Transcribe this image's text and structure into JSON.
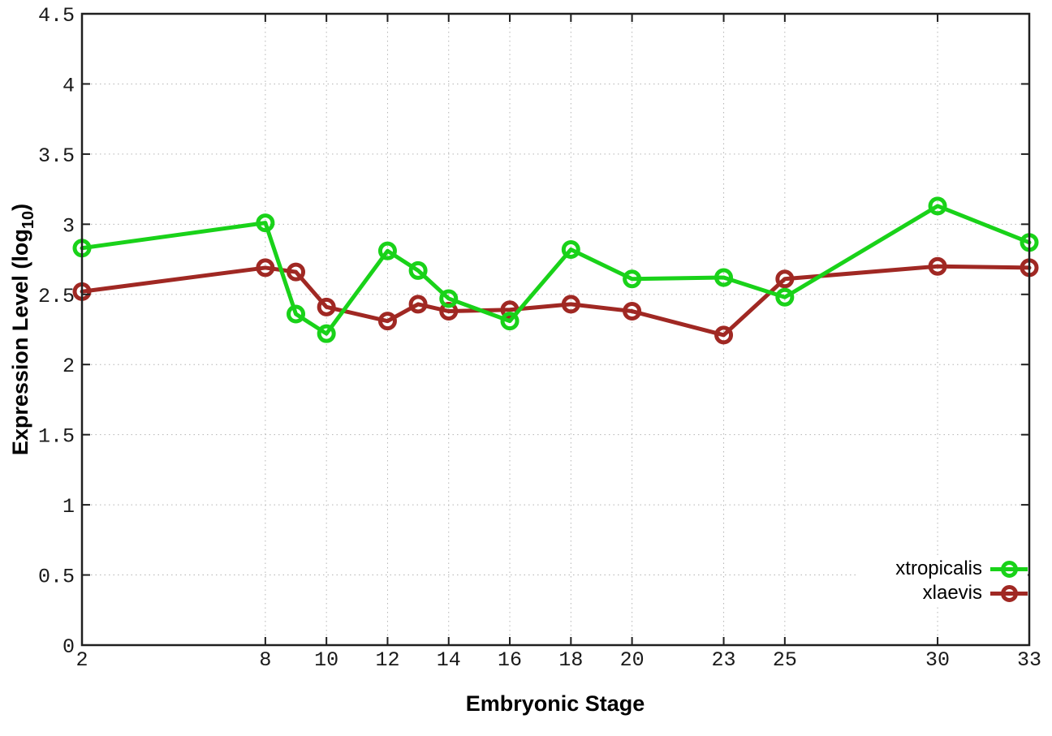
{
  "figure": {
    "background": "#ffffff"
  },
  "axes": {
    "xlabel": "Embryonic Stage",
    "ylabel_prefix": "Expression Level (log",
    "ylabel_sub": "10",
    "ylabel_suffix": ")"
  },
  "chart_data": {
    "type": "line",
    "title": "",
    "xlabel": "Embryonic Stage",
    "ylabel": "Expression Level (log10)",
    "x": [
      2,
      8,
      9,
      10,
      12,
      13,
      14,
      16,
      18,
      20,
      23,
      25,
      30,
      33
    ],
    "xlim": [
      2,
      33
    ],
    "ylim": [
      0,
      4.5
    ],
    "x_tick_values": [
      2,
      8,
      10,
      12,
      14,
      16,
      18,
      20,
      23,
      25,
      30,
      33
    ],
    "x_tick_labels": [
      "2",
      "8",
      "10",
      "12",
      "14",
      "16",
      "18",
      "20",
      "23",
      "25",
      "30",
      "33"
    ],
    "y_tick_values": [
      0,
      0.5,
      1,
      1.5,
      2,
      2.5,
      3,
      3.5,
      4,
      4.5
    ],
    "y_tick_labels": [
      "0",
      "0.5",
      "1",
      "1.5",
      "2",
      "2.5",
      "3",
      "3.5",
      "4",
      "4.5"
    ],
    "grid": true,
    "legend_position": "bottom-right",
    "series": [
      {
        "name": "xtropicalis",
        "color": "#19d219",
        "marker": "open-circle",
        "values": [
          2.83,
          3.01,
          2.36,
          2.22,
          2.81,
          2.67,
          2.47,
          2.31,
          2.82,
          2.61,
          2.62,
          2.48,
          3.13,
          2.87
        ]
      },
      {
        "name": "xlaevis",
        "color": "#a02823",
        "marker": "open-circle",
        "values": [
          2.52,
          2.69,
          2.66,
          2.41,
          2.31,
          2.43,
          2.38,
          2.39,
          2.43,
          2.38,
          2.21,
          2.61,
          2.7,
          2.69
        ]
      }
    ],
    "styles": {
      "grid_color": "#b4b4b4",
      "border_color": "#1f1f1f",
      "tick_label_color": "#1a1a1a"
    }
  }
}
